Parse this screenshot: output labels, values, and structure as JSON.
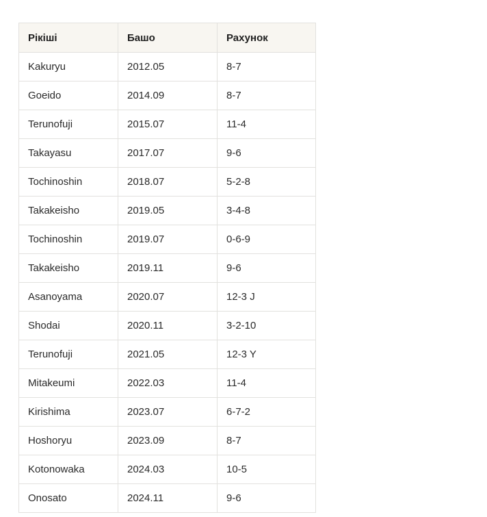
{
  "page": {
    "background_color": "#ffffff"
  },
  "table": {
    "header_bg_color": "#f8f6f1",
    "border_color": "#e2e1de",
    "text_color": "#2a2a2a",
    "columns": [
      {
        "label": "Рікіші"
      },
      {
        "label": "Башо"
      },
      {
        "label": "Рахунок"
      }
    ],
    "rows": [
      {
        "rikishi": "Kakuryu",
        "basho": "2012.05",
        "score": "8-7"
      },
      {
        "rikishi": "Goeido",
        "basho": "2014.09",
        "score": "8-7"
      },
      {
        "rikishi": "Terunofuji",
        "basho": "2015.07",
        "score": "11-4"
      },
      {
        "rikishi": "Takayasu",
        "basho": "2017.07",
        "score": "9-6"
      },
      {
        "rikishi": "Tochinoshin",
        "basho": "2018.07",
        "score": "5-2-8"
      },
      {
        "rikishi": "Takakeisho",
        "basho": "2019.05",
        "score": "3-4-8"
      },
      {
        "rikishi": "Tochinoshin",
        "basho": "2019.07",
        "score": "0-6-9"
      },
      {
        "rikishi": "Takakeisho",
        "basho": "2019.11",
        "score": "9-6"
      },
      {
        "rikishi": "Asanoyama",
        "basho": "2020.07",
        "score": "12-3 J"
      },
      {
        "rikishi": "Shodai",
        "basho": "2020.11",
        "score": "3-2-10"
      },
      {
        "rikishi": "Terunofuji",
        "basho": "2021.05",
        "score": "12-3 Y"
      },
      {
        "rikishi": "Mitakeumi",
        "basho": "2022.03",
        "score": "11-4"
      },
      {
        "rikishi": "Kirishima",
        "basho": "2023.07",
        "score": "6-7-2"
      },
      {
        "rikishi": "Hoshoryu",
        "basho": "2023.09",
        "score": "8-7"
      },
      {
        "rikishi": "Kotonowaka",
        "basho": "2024.03",
        "score": "10-5"
      },
      {
        "rikishi": "Onosato",
        "basho": "2024.11",
        "score": "9-6"
      }
    ]
  }
}
